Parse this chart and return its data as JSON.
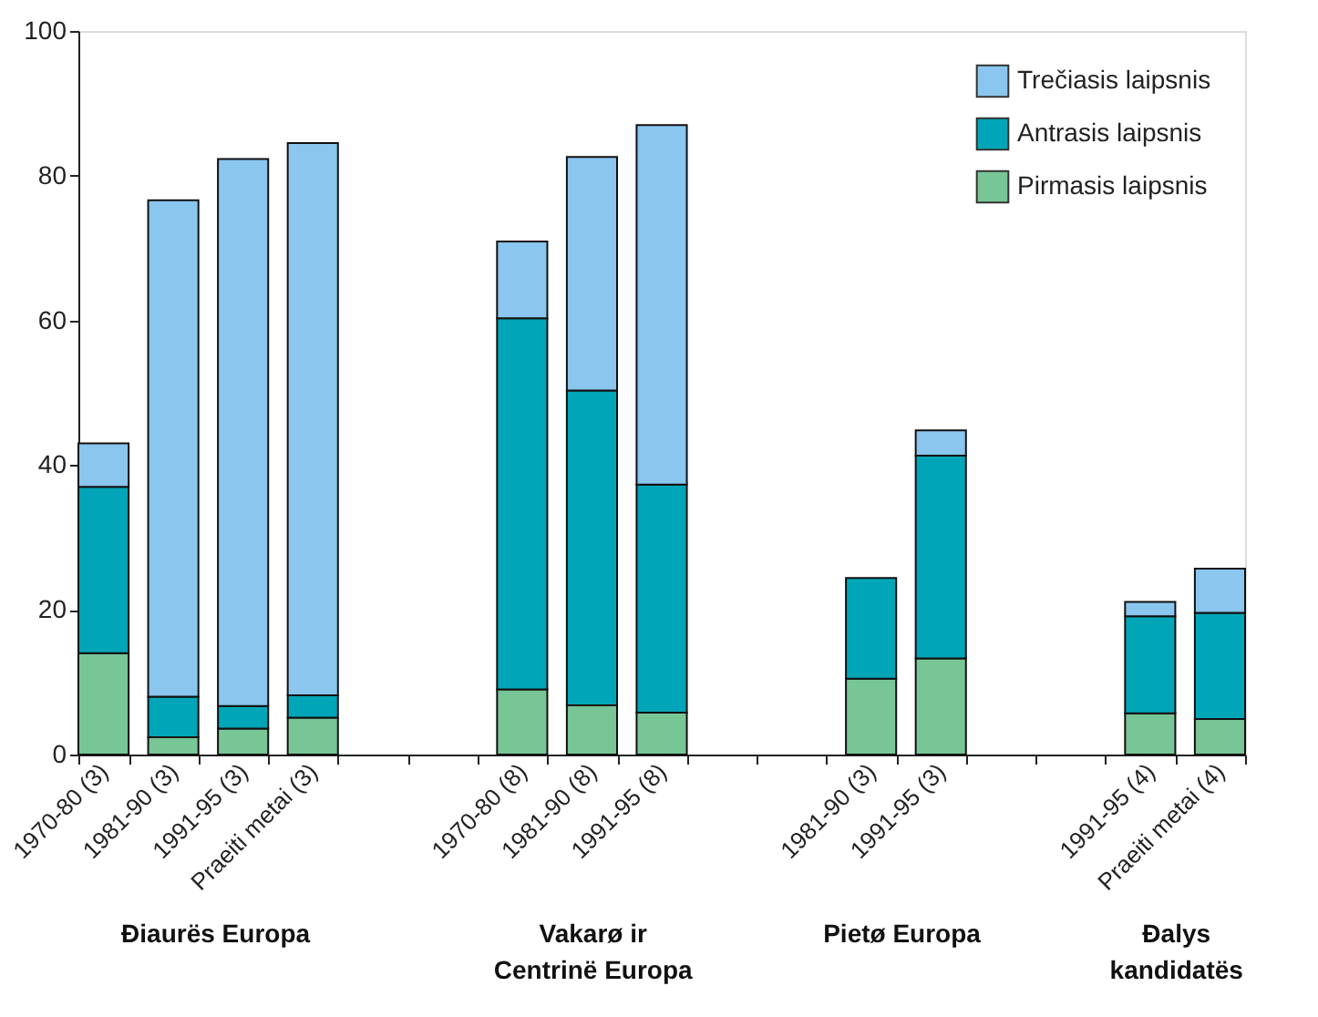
{
  "chart_data": {
    "type": "bar",
    "stacked": true,
    "categories": [
      "1970-80 (3)",
      "1981-90 (3)",
      "1991-95 (3)",
      "Praeiti metai (3)",
      null,
      null,
      "1970-80 (8)",
      "1981-90 (8)",
      "1991-95 (8)",
      null,
      null,
      "1981-90 (3)",
      "1991-95 (3)",
      null,
      null,
      "1991-95 (4)",
      "Praeiti metai (4)"
    ],
    "series": [
      {
        "name": "Pirmasis laipsnis",
        "color": "#78c596",
        "values": [
          14,
          2.4,
          3.6,
          5.1,
          null,
          null,
          9,
          6.8,
          5.8,
          null,
          null,
          10.5,
          13.3,
          null,
          null,
          5.7,
          4.9
        ]
      },
      {
        "name": "Antrasis laipsnis",
        "color": "#00a6b8",
        "values": [
          23,
          5.6,
          3.1,
          3.1,
          null,
          null,
          51.3,
          43.5,
          31.5,
          null,
          null,
          13.9,
          28,
          null,
          null,
          13.4,
          14.7
        ]
      },
      {
        "name": "Trečiasis laipsnis",
        "color": "#8ac6ee",
        "values": [
          6,
          68.6,
          75.6,
          76.3,
          null,
          null,
          10.6,
          32.3,
          49.7,
          null,
          null,
          null,
          3.5,
          null,
          null,
          2,
          6.1
        ]
      }
    ],
    "ylim": [
      0,
      100
    ],
    "yticks": [
      0,
      20,
      40,
      60,
      80,
      100
    ],
    "grid": false,
    "legend": "top right",
    "annotations": [
      "Ðiaurës Europa",
      "Vakarø ir\nCentrinë Europa",
      "Pietø Europa",
      "Ðalys\nkandidatës"
    ]
  }
}
